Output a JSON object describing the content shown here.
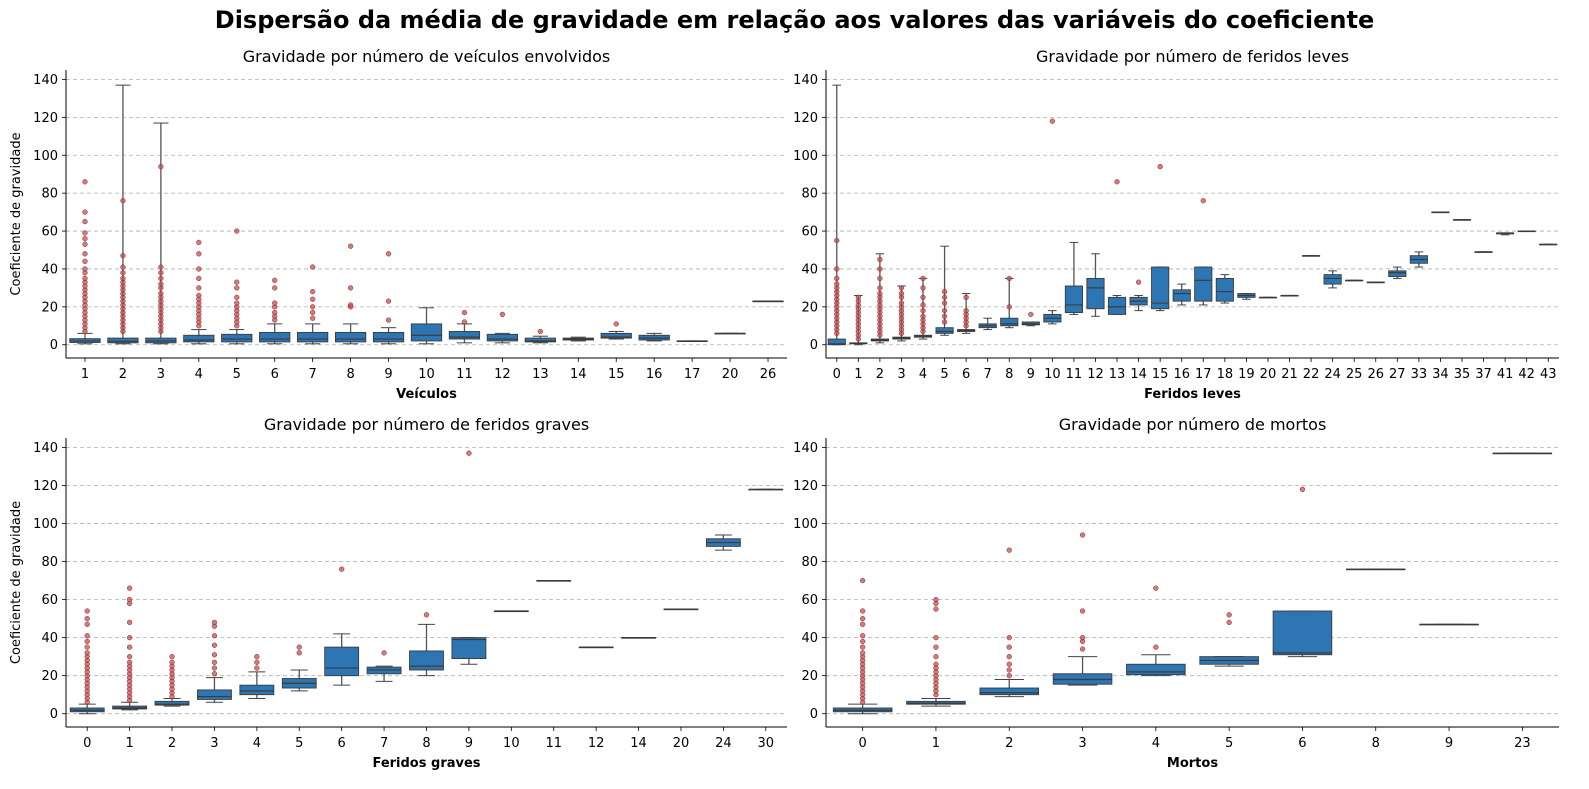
{
  "suptitle": "Dispersão da média de gravidade em relação aos valores das variáveis do coeficiente",
  "style": {
    "box_color": "#2e76b3",
    "outlier_color": "#c44e52",
    "grid": "dashed",
    "yticks": [
      0,
      20,
      40,
      60,
      80,
      100,
      120,
      140
    ]
  },
  "chart_data": [
    {
      "type": "box",
      "title": "Gravidade por número de veículos envolvidos",
      "xlabel": "Veículos",
      "ylabel": "Coeficiente de gravidade",
      "ylim": [
        -7,
        145
      ],
      "categories": [
        "1",
        "2",
        "3",
        "4",
        "5",
        "6",
        "7",
        "8",
        "9",
        "10",
        "11",
        "12",
        "13",
        "14",
        "15",
        "16",
        "17",
        "20",
        "26"
      ],
      "boxes": [
        {
          "lo": 0.5,
          "q1": 1.2,
          "med": 2,
          "q3": 3.2,
          "hi": 6,
          "out": [
            7,
            9,
            11,
            13,
            15,
            17,
            19,
            21,
            23,
            25,
            27,
            29,
            31,
            33,
            35,
            38,
            40,
            44,
            48,
            53,
            56,
            59,
            65,
            70,
            86
          ]
        },
        {
          "lo": 0.5,
          "q1": 1,
          "med": 1.8,
          "q3": 3.5,
          "hi": 137,
          "out": [
            7,
            9,
            11,
            13,
            15,
            17,
            19,
            21,
            23,
            25,
            27,
            29,
            31,
            33,
            35,
            38,
            41,
            47,
            76
          ]
        },
        {
          "lo": 0.5,
          "q1": 1,
          "med": 2,
          "q3": 3.5,
          "hi": 117,
          "out": [
            7,
            9,
            11,
            13,
            15,
            17,
            19,
            21,
            23,
            25,
            27,
            30,
            32,
            35,
            38,
            41,
            94
          ]
        },
        {
          "lo": 0.5,
          "q1": 1.5,
          "med": 2.5,
          "q3": 5,
          "hi": 8,
          "out": [
            10,
            12,
            14,
            16,
            18,
            20,
            22,
            24,
            26,
            30,
            35,
            40,
            48,
            54
          ]
        },
        {
          "lo": 0.5,
          "q1": 1.5,
          "med": 3,
          "q3": 5.5,
          "hi": 8,
          "out": [
            10,
            12,
            14,
            16,
            18,
            20,
            22,
            25,
            30,
            33,
            60
          ]
        },
        {
          "lo": 0.5,
          "q1": 1.5,
          "med": 3,
          "q3": 6.5,
          "hi": 11,
          "out": [
            13,
            15,
            17,
            20,
            22,
            30,
            34
          ]
        },
        {
          "lo": 0.5,
          "q1": 1.5,
          "med": 3,
          "q3": 6.5,
          "hi": 11,
          "out": [
            14,
            17,
            20,
            24,
            28,
            41
          ]
        },
        {
          "lo": 0.5,
          "q1": 1.5,
          "med": 3,
          "q3": 6.5,
          "hi": 11,
          "out": [
            20,
            21,
            30,
            52
          ]
        },
        {
          "lo": 0.5,
          "q1": 1.5,
          "med": 3,
          "q3": 6.5,
          "hi": 9,
          "out": [
            13,
            23,
            48
          ]
        },
        {
          "lo": 0.5,
          "q1": 2,
          "med": 5,
          "q3": 11,
          "hi": 19.5,
          "out": []
        },
        {
          "lo": 1,
          "q1": 3,
          "med": 4,
          "q3": 7,
          "hi": 11,
          "out": [
            12,
            17
          ]
        },
        {
          "lo": 1,
          "q1": 2,
          "med": 3,
          "q3": 5.5,
          "hi": 6,
          "out": [
            16
          ]
        },
        {
          "lo": 1,
          "q1": 1.5,
          "med": 2,
          "q3": 3.5,
          "hi": 4.5,
          "out": [
            7
          ]
        },
        {
          "lo": 2,
          "q1": 2.5,
          "med": 3,
          "q3": 3.5,
          "hi": 4,
          "out": []
        },
        {
          "lo": 3,
          "q1": 3.5,
          "med": 4,
          "q3": 6,
          "hi": 7,
          "out": [
            11
          ]
        },
        {
          "lo": 2,
          "q1": 2.5,
          "med": 3.5,
          "q3": 5,
          "hi": 6,
          "out": []
        },
        {
          "lo": 2,
          "q1": 2,
          "med": 2,
          "q3": 2,
          "hi": 2,
          "out": []
        },
        {
          "lo": 6,
          "q1": 6,
          "med": 6,
          "q3": 6,
          "hi": 6,
          "out": []
        },
        {
          "lo": 23,
          "q1": 23,
          "med": 23,
          "q3": 23,
          "hi": 23,
          "out": []
        }
      ]
    },
    {
      "type": "box",
      "title": "Gravidade por número de feridos leves",
      "xlabel": "Feridos leves",
      "ylabel": "",
      "ylim": [
        -7,
        145
      ],
      "categories": [
        "0",
        "1",
        "2",
        "3",
        "4",
        "5",
        "6",
        "7",
        "8",
        "9",
        "10",
        "11",
        "12",
        "13",
        "14",
        "15",
        "16",
        "17",
        "18",
        "19",
        "20",
        "21",
        "22",
        "24",
        "25",
        "26",
        "27",
        "33",
        "34",
        "35",
        "37",
        "41",
        "42",
        "43"
      ],
      "boxes": [
        {
          "lo": 0,
          "q1": 0,
          "med": 0.5,
          "q3": 3,
          "hi": 137,
          "out": [
            6,
            8,
            10,
            12,
            14,
            16,
            18,
            20,
            22,
            24,
            26,
            28,
            30,
            32,
            35,
            40,
            55
          ]
        },
        {
          "lo": 0,
          "q1": 0.5,
          "med": 0.8,
          "q3": 1,
          "hi": 26,
          "out": [
            3,
            5,
            7,
            9,
            11,
            13,
            15,
            17,
            19,
            21,
            23,
            25
          ]
        },
        {
          "lo": 1,
          "q1": 2,
          "med": 2.5,
          "q3": 3,
          "hi": 48,
          "out": [
            5,
            7,
            9,
            11,
            13,
            15,
            17,
            19,
            21,
            23,
            25,
            27,
            30,
            35,
            40,
            45
          ]
        },
        {
          "lo": 2,
          "q1": 3,
          "med": 3.5,
          "q3": 4,
          "hi": 31,
          "out": [
            6,
            8,
            10,
            12,
            14,
            16,
            18,
            20,
            22,
            25,
            27,
            30
          ]
        },
        {
          "lo": 3,
          "q1": 4,
          "med": 4.5,
          "q3": 5,
          "hi": 35,
          "out": [
            7,
            9,
            11,
            13,
            15,
            18,
            21,
            25,
            30,
            35
          ]
        },
        {
          "lo": 5,
          "q1": 6,
          "med": 7,
          "q3": 9,
          "hi": 52,
          "out": [
            12,
            15,
            18,
            22,
            25,
            28
          ]
        },
        {
          "lo": 6,
          "q1": 7,
          "med": 7.5,
          "q3": 8,
          "hi": 27,
          "out": [
            10,
            12,
            14,
            16,
            18,
            25
          ]
        },
        {
          "lo": 8,
          "q1": 9,
          "med": 10,
          "q3": 11,
          "hi": 14,
          "out": []
        },
        {
          "lo": 9,
          "q1": 10,
          "med": 11,
          "q3": 14,
          "hi": 35,
          "out": [
            20,
            35
          ]
        },
        {
          "lo": 10,
          "q1": 10.5,
          "med": 11,
          "q3": 12,
          "hi": 12,
          "out": [
            16
          ]
        },
        {
          "lo": 11,
          "q1": 12,
          "med": 14,
          "q3": 16,
          "hi": 18,
          "out": [
            118
          ]
        },
        {
          "lo": 16,
          "q1": 17,
          "med": 21,
          "q3": 31,
          "hi": 54,
          "out": []
        },
        {
          "lo": 15,
          "q1": 19,
          "med": 30,
          "q3": 35,
          "hi": 48,
          "out": []
        },
        {
          "lo": 16,
          "q1": 16,
          "med": 20,
          "q3": 25,
          "hi": 26,
          "out": [
            86
          ]
        },
        {
          "lo": 18,
          "q1": 21,
          "med": 23,
          "q3": 25,
          "hi": 26,
          "out": [
            33
          ]
        },
        {
          "lo": 18,
          "q1": 19,
          "med": 22,
          "q3": 41,
          "hi": 41,
          "out": [
            94
          ]
        },
        {
          "lo": 21,
          "q1": 23,
          "med": 27,
          "q3": 29,
          "hi": 32,
          "out": []
        },
        {
          "lo": 21,
          "q1": 23,
          "med": 34,
          "q3": 41,
          "hi": 41,
          "out": [
            76
          ]
        },
        {
          "lo": 22,
          "q1": 23,
          "med": 28,
          "q3": 35,
          "hi": 37,
          "out": []
        },
        {
          "lo": 24,
          "q1": 25,
          "med": 26,
          "q3": 27,
          "hi": 27,
          "out": []
        },
        {
          "lo": 25,
          "q1": 25,
          "med": 25,
          "q3": 25,
          "hi": 25,
          "out": []
        },
        {
          "lo": 26,
          "q1": 26,
          "med": 26,
          "q3": 26,
          "hi": 26,
          "out": []
        },
        {
          "lo": 47,
          "q1": 47,
          "med": 47,
          "q3": 47,
          "hi": 47,
          "out": []
        },
        {
          "lo": 30,
          "q1": 32,
          "med": 35,
          "q3": 37,
          "hi": 39,
          "out": []
        },
        {
          "lo": 34,
          "q1": 34,
          "med": 34,
          "q3": 34,
          "hi": 34,
          "out": []
        },
        {
          "lo": 33,
          "q1": 33,
          "med": 33,
          "q3": 33,
          "hi": 33,
          "out": []
        },
        {
          "lo": 35,
          "q1": 36,
          "med": 38,
          "q3": 39,
          "hi": 41,
          "out": []
        },
        {
          "lo": 41,
          "q1": 43,
          "med": 45,
          "q3": 47,
          "hi": 49,
          "out": []
        },
        {
          "lo": 70,
          "q1": 70,
          "med": 70,
          "q3": 70,
          "hi": 70,
          "out": []
        },
        {
          "lo": 66,
          "q1": 66,
          "med": 66,
          "q3": 66,
          "hi": 66,
          "out": []
        },
        {
          "lo": 49,
          "q1": 49,
          "med": 49,
          "q3": 49,
          "hi": 49,
          "out": []
        },
        {
          "lo": 58,
          "q1": 58.5,
          "med": 59,
          "q3": 59,
          "hi": 59,
          "out": []
        },
        {
          "lo": 60,
          "q1": 60,
          "med": 60,
          "q3": 60,
          "hi": 60,
          "out": []
        },
        {
          "lo": 53,
          "q1": 53,
          "med": 53,
          "q3": 53,
          "hi": 53,
          "out": []
        }
      ]
    },
    {
      "type": "box",
      "title": "Gravidade por número de feridos graves",
      "xlabel": "Feridos graves",
      "ylabel": "Coeficiente de gravidade",
      "ylim": [
        -7,
        145
      ],
      "categories": [
        "0",
        "1",
        "2",
        "3",
        "4",
        "5",
        "6",
        "7",
        "8",
        "9",
        "10",
        "11",
        "12",
        "14",
        "20",
        "24",
        "30"
      ],
      "boxes": [
        {
          "lo": 0,
          "q1": 1,
          "med": 1.8,
          "q3": 3,
          "hi": 5,
          "out": [
            6,
            8,
            10,
            12,
            14,
            16,
            18,
            20,
            22,
            24,
            26,
            28,
            30,
            32,
            35,
            38,
            41,
            47,
            50,
            54
          ]
        },
        {
          "lo": 2,
          "q1": 2.5,
          "med": 3,
          "q3": 4,
          "hi": 6,
          "out": [
            7,
            9,
            11,
            13,
            15,
            17,
            19,
            21,
            23,
            25,
            27,
            30,
            35,
            40,
            48,
            58,
            60,
            66
          ]
        },
        {
          "lo": 4,
          "q1": 4.5,
          "med": 5,
          "q3": 6.5,
          "hi": 8,
          "out": [
            9,
            11,
            13,
            15,
            17,
            19,
            21,
            23,
            25,
            27,
            30
          ]
        },
        {
          "lo": 6,
          "q1": 7.5,
          "med": 9,
          "q3": 12.5,
          "hi": 19,
          "out": [
            21,
            24,
            27,
            31,
            36,
            41,
            46,
            48
          ]
        },
        {
          "lo": 8,
          "q1": 10,
          "med": 12,
          "q3": 15,
          "hi": 22,
          "out": [
            24,
            27,
            30
          ]
        },
        {
          "lo": 12,
          "q1": 13.5,
          "med": 16,
          "q3": 18.5,
          "hi": 23,
          "out": [
            32,
            35
          ]
        },
        {
          "lo": 15,
          "q1": 20,
          "med": 24,
          "q3": 35,
          "hi": 42,
          "out": [
            76
          ]
        },
        {
          "lo": 17,
          "q1": 21,
          "med": 23,
          "q3": 24.5,
          "hi": 25,
          "out": [
            32
          ]
        },
        {
          "lo": 20,
          "q1": 23,
          "med": 25,
          "q3": 33,
          "hi": 47,
          "out": [
            52
          ]
        },
        {
          "lo": 26,
          "q1": 29,
          "med": 39,
          "q3": 40,
          "hi": 40,
          "out": [
            137
          ]
        },
        {
          "lo": 54,
          "q1": 54,
          "med": 54,
          "q3": 54,
          "hi": 54,
          "out": []
        },
        {
          "lo": 70,
          "q1": 70,
          "med": 70,
          "q3": 70,
          "hi": 70,
          "out": []
        },
        {
          "lo": 35,
          "q1": 35,
          "med": 35,
          "q3": 35,
          "hi": 35,
          "out": []
        },
        {
          "lo": 40,
          "q1": 40,
          "med": 40,
          "q3": 40,
          "hi": 40,
          "out": []
        },
        {
          "lo": 55,
          "q1": 55,
          "med": 55,
          "q3": 55,
          "hi": 55,
          "out": []
        },
        {
          "lo": 86,
          "q1": 88,
          "med": 90,
          "q3": 92,
          "hi": 94,
          "out": []
        },
        {
          "lo": 118,
          "q1": 118,
          "med": 118,
          "q3": 118,
          "hi": 118,
          "out": []
        }
      ]
    },
    {
      "type": "box",
      "title": "Gravidade por número de mortos",
      "xlabel": "Mortos",
      "ylabel": "",
      "ylim": [
        -7,
        145
      ],
      "categories": [
        "0",
        "1",
        "2",
        "3",
        "4",
        "5",
        "6",
        "8",
        "9",
        "23"
      ],
      "boxes": [
        {
          "lo": 0,
          "q1": 1,
          "med": 1.8,
          "q3": 3,
          "hi": 5,
          "out": [
            6,
            8,
            10,
            12,
            14,
            16,
            18,
            20,
            22,
            24,
            26,
            28,
            30,
            32,
            35,
            38,
            41,
            47,
            50,
            54,
            70
          ]
        },
        {
          "lo": 4,
          "q1": 5,
          "med": 5.5,
          "q3": 6.5,
          "hi": 8,
          "out": [
            10,
            12,
            14,
            16,
            18,
            20,
            22,
            24,
            26,
            30,
            35,
            40,
            55,
            58,
            60
          ]
        },
        {
          "lo": 9,
          "q1": 10,
          "med": 11,
          "q3": 13.5,
          "hi": 18,
          "out": [
            20,
            23,
            26,
            30,
            35,
            40,
            86
          ]
        },
        {
          "lo": 15,
          "q1": 15.5,
          "med": 18,
          "q3": 21,
          "hi": 30,
          "out": [
            34,
            38,
            40,
            54,
            94
          ]
        },
        {
          "lo": 20,
          "q1": 20.5,
          "med": 22,
          "q3": 26,
          "hi": 31,
          "out": [
            35,
            66
          ]
        },
        {
          "lo": 25,
          "q1": 26,
          "med": 28,
          "q3": 30,
          "hi": 30,
          "out": [
            48,
            52
          ]
        },
        {
          "lo": 30,
          "q1": 31,
          "med": 32,
          "q3": 54,
          "hi": 54,
          "out": [
            118
          ]
        },
        {
          "lo": 76,
          "q1": 76,
          "med": 76,
          "q3": 76,
          "hi": 76,
          "out": []
        },
        {
          "lo": 47,
          "q1": 47,
          "med": 47,
          "q3": 47,
          "hi": 47,
          "out": []
        },
        {
          "lo": 137,
          "q1": 137,
          "med": 137,
          "q3": 137,
          "hi": 137,
          "out": []
        }
      ]
    }
  ]
}
